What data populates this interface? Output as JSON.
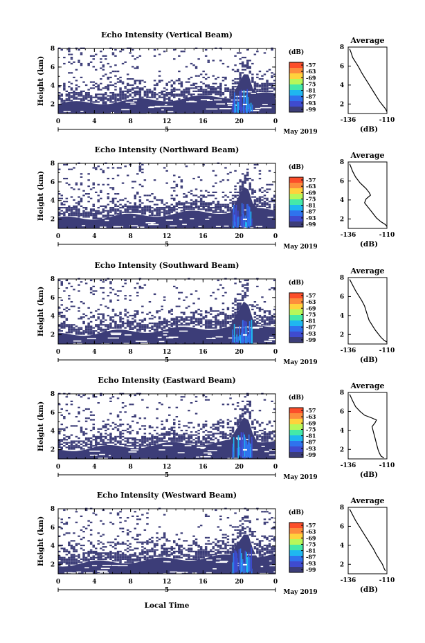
{
  "chart_data": {
    "type": "heatmap",
    "xlabel": "Local Time",
    "date_label": "May 2019",
    "day_marker": "5",
    "x_ticks": [
      "0",
      "4",
      "8",
      "12",
      "16",
      "20",
      "0"
    ],
    "xlim": [
      0,
      24
    ],
    "ylabel": "Height (km)",
    "y_ticks": [
      "2",
      "4",
      "6",
      "8"
    ],
    "ylim": [
      1,
      8
    ],
    "colorbar": {
      "unit": "(dB)",
      "ticks": [
        "-57",
        "-63",
        "-69",
        "-75",
        "-81",
        "-87",
        "-93",
        "-99"
      ],
      "colors": [
        "#fc4e2a",
        "#fd8d3c",
        "#ffd23c",
        "#b7f75a",
        "#44e9a9",
        "#1fb7f0",
        "#2f73ee",
        "#3f4bcf",
        "#3c3d78"
      ]
    },
    "panels": [
      {
        "title": "Echo Intensity (Vertical Beam)",
        "profile": {
          "title": "Average",
          "xlabel": "(dB)",
          "x_ticks": [
            "-136",
            "-110"
          ],
          "y_ticks": [
            "2",
            "4",
            "6",
            "8"
          ],
          "x": [
            -135,
            -134,
            -133,
            -131,
            -129,
            -127,
            -125,
            -123,
            -121,
            -119,
            -117,
            -115,
            -113,
            -111,
            -110
          ],
          "y": [
            7.8,
            7.4,
            6.9,
            6.4,
            5.9,
            5.3,
            4.8,
            4.3,
            3.8,
            3.3,
            2.8,
            2.3,
            1.9,
            1.5,
            1.2
          ]
        }
      },
      {
        "title": "Echo Intensity (Northward Beam)",
        "profile": {
          "title": "Average",
          "xlabel": "(dB)",
          "x_ticks": [
            "-136",
            "-110"
          ],
          "y_ticks": [
            "2",
            "4",
            "6",
            "8"
          ],
          "x": [
            -135,
            -133,
            -131,
            -128,
            -124,
            -122,
            -121,
            -124,
            -125,
            -123,
            -121,
            -119,
            -117,
            -114,
            -111,
            -110
          ],
          "y": [
            7.8,
            7.0,
            6.4,
            5.8,
            5.2,
            4.8,
            4.5,
            4.1,
            3.7,
            3.3,
            2.9,
            2.5,
            2.1,
            1.7,
            1.4,
            1.2
          ]
        }
      },
      {
        "title": "Echo Intensity (Southward Beam)",
        "profile": {
          "title": "Average",
          "xlabel": "(dB)",
          "x_ticks": [
            "-136",
            "-110"
          ],
          "y_ticks": [
            "2",
            "4",
            "6",
            "8"
          ],
          "x": [
            -135,
            -133,
            -131,
            -129,
            -127,
            -125,
            -124,
            -123,
            -122,
            -120,
            -118,
            -116,
            -114,
            -112,
            -110
          ],
          "y": [
            7.8,
            7.2,
            6.6,
            6.1,
            5.6,
            5.0,
            4.5,
            4.0,
            3.5,
            3.0,
            2.5,
            2.1,
            1.7,
            1.4,
            1.2
          ]
        }
      },
      {
        "title": "Echo Intensity (Eastward Beam)",
        "profile": {
          "title": "Average",
          "xlabel": "(dB)",
          "x_ticks": [
            "-136",
            "-110"
          ],
          "y_ticks": [
            "2",
            "4",
            "6",
            "8"
          ],
          "x": [
            -135,
            -133,
            -131,
            -128,
            -125,
            -120,
            -117,
            -118,
            -120,
            -119,
            -118,
            -117,
            -116,
            -115,
            -114,
            -112
          ],
          "y": [
            7.8,
            7.1,
            6.5,
            6.0,
            5.6,
            5.3,
            5.1,
            4.8,
            4.4,
            3.8,
            3.2,
            2.6,
            2.0,
            1.6,
            1.3,
            1.1
          ]
        }
      },
      {
        "title": "Echo Intensity (Westward Beam)",
        "profile": {
          "title": "Average",
          "xlabel": "(dB)",
          "x_ticks": [
            "-136",
            "-110"
          ],
          "y_ticks": [
            "2",
            "4",
            "6",
            "8"
          ],
          "x": [
            -135,
            -133,
            -131,
            -129,
            -127,
            -125,
            -123,
            -121,
            -119,
            -117,
            -115,
            -113,
            -112,
            -111
          ],
          "y": [
            7.8,
            7.2,
            6.6,
            6.1,
            5.6,
            5.1,
            4.6,
            4.1,
            3.6,
            3.0,
            2.5,
            2.0,
            1.6,
            1.3
          ]
        }
      }
    ]
  }
}
